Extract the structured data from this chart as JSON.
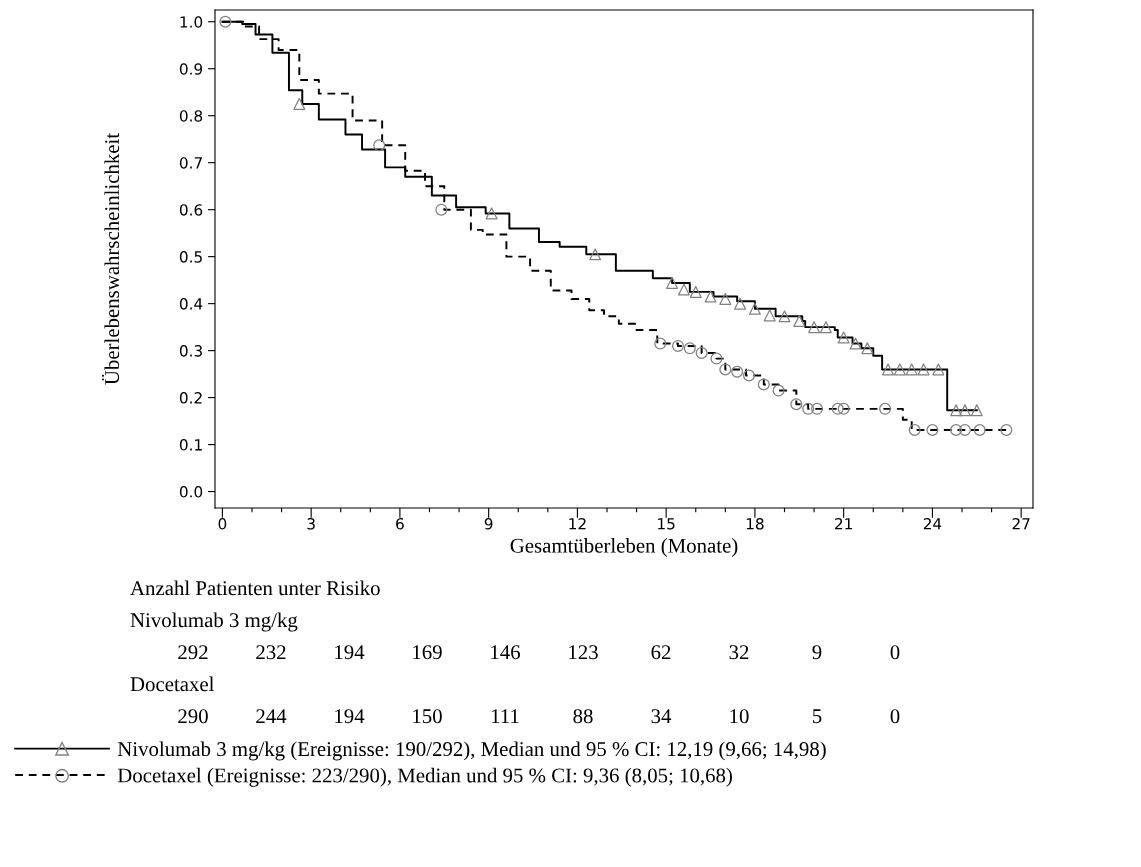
{
  "chart_data": {
    "type": "step",
    "xlabel": "Gesamtüberleben (Monate)",
    "ylabel": "Überlebenswahrscheinlichkeit",
    "xlim": [
      -0.25,
      27.4
    ],
    "ylim": [
      -0.035,
      1.025
    ],
    "xticks": [
      0,
      {
        "value": 1,
        "label": null
      },
      {
        "value": 2,
        "label": null
      },
      3,
      {
        "value": 4,
        "label": null
      },
      {
        "value": 5,
        "label": null
      },
      6,
      {
        "value": 7,
        "label": null
      },
      {
        "value": 8,
        "label": null
      },
      9,
      {
        "value": 10,
        "label": null
      },
      {
        "value": 11,
        "label": null
      },
      12,
      {
        "value": 13,
        "label": null
      },
      {
        "value": 14,
        "label": null
      },
      15,
      {
        "value": 16,
        "label": null
      },
      {
        "value": 17,
        "label": null
      },
      18,
      {
        "value": 19,
        "label": null
      },
      {
        "value": 20,
        "label": null
      },
      21,
      {
        "value": 22,
        "label": null
      },
      {
        "value": 23,
        "label": null
      },
      24,
      {
        "value": 25,
        "label": null
      },
      {
        "value": 26,
        "label": null
      },
      27
    ],
    "yticks": [
      {
        "value": 0,
        "label": "0.0"
      },
      0.1,
      0.2,
      0.3,
      0.4,
      0.5,
      0.6,
      0.7,
      0.8,
      0.9,
      {
        "value": 1,
        "label": "1.0"
      }
    ],
    "grid": false,
    "legend": "bottom",
    "series": [
      {
        "name": "Nivolumab 3 mg/kg (Ereignisse: 190/292), Median und 95 % CI: 12,19 (9,66; 14,98)",
        "color": "#000000",
        "line_style": "solid",
        "x": [
          0,
          0.67,
          1.12,
          1.69,
          2.25,
          2.7,
          3.26,
          4.16,
          4.72,
          5.5,
          6.18,
          7.08,
          7.9,
          8.9,
          9.7,
          10.7,
          11.4,
          12.3,
          13.3,
          14.55,
          15.2,
          15.8,
          16.6,
          17.4,
          18.0,
          18.7,
          19.6,
          19.7,
          20.7,
          20.8,
          21.3,
          21.6,
          22.0,
          22.3,
          24.5,
          25.5
        ],
        "values": [
          1.0,
          0.995,
          0.973,
          0.934,
          0.854,
          0.825,
          0.792,
          0.76,
          0.728,
          0.69,
          0.67,
          0.63,
          0.605,
          0.592,
          0.56,
          0.531,
          0.521,
          0.505,
          0.47,
          0.454,
          0.444,
          0.425,
          0.415,
          0.405,
          0.389,
          0.373,
          0.363,
          0.35,
          0.344,
          0.328,
          0.315,
          0.305,
          0.289,
          0.26,
          0.173,
          0.173
        ]
      },
      {
        "name": "Docetaxel (Ereignisse: 223/290), Median und 95 % CI: 9,36 (8,05; 10,68)",
        "color": "#000000",
        "line_style": "dashed",
        "x": [
          0,
          0.7,
          1.24,
          1.9,
          2.6,
          3.26,
          4.4,
          5.4,
          6.18,
          6.85,
          7.5,
          8.4,
          8.8,
          9.6,
          10.4,
          11.1,
          11.8,
          12.4,
          12.9,
          13.4,
          14.0,
          14.7,
          15.4,
          16.2,
          16.7,
          17.0,
          17.7,
          18.3,
          18.8,
          19.4,
          19.8,
          23.0,
          23.3,
          26.5
        ],
        "values": [
          1.0,
          0.99,
          0.963,
          0.94,
          0.876,
          0.847,
          0.79,
          0.737,
          0.683,
          0.65,
          0.6,
          0.557,
          0.547,
          0.5,
          0.47,
          0.428,
          0.41,
          0.386,
          0.373,
          0.357,
          0.344,
          0.315,
          0.31,
          0.295,
          0.283,
          0.26,
          0.247,
          0.228,
          0.215,
          0.186,
          0.176,
          0.153,
          0.131,
          0.131
        ]
      },
      {
        "type": "scatter",
        "marker": "triangle",
        "color": "#808080",
        "x": [
          2.6,
          9.1,
          12.6,
          15.2,
          15.6,
          16.0,
          16.5,
          17.0,
          17.5,
          18.0,
          18.5,
          19.0,
          19.5,
          20.0,
          20.4,
          21.0,
          21.4,
          21.8,
          22.5,
          22.9,
          23.3,
          23.7,
          24.2,
          24.8,
          25.1,
          25.5
        ],
        "values": [
          0.825,
          0.592,
          0.505,
          0.444,
          0.43,
          0.425,
          0.415,
          0.41,
          0.4,
          0.389,
          0.375,
          0.373,
          0.363,
          0.35,
          0.35,
          0.328,
          0.315,
          0.305,
          0.26,
          0.26,
          0.26,
          0.26,
          0.26,
          0.173,
          0.173,
          0.173
        ]
      },
      {
        "type": "scatter",
        "marker": "circle",
        "color": "#808080",
        "x": [
          0.1,
          5.3,
          7.4,
          14.8,
          15.4,
          15.8,
          16.2,
          16.7,
          17.0,
          17.4,
          17.8,
          18.3,
          18.8,
          19.4,
          19.8,
          20.1,
          20.8,
          21.0,
          22.4,
          23.4,
          24.0,
          24.8,
          25.1,
          25.6,
          26.5
        ],
        "values": [
          1.0,
          0.737,
          0.6,
          0.315,
          0.31,
          0.305,
          0.295,
          0.283,
          0.26,
          0.255,
          0.247,
          0.228,
          0.215,
          0.186,
          0.176,
          0.176,
          0.176,
          0.176,
          0.176,
          0.131,
          0.131,
          0.131,
          0.131,
          0.131,
          0.131
        ]
      }
    ],
    "annotations": [
      "Anzahl Patienten unter Risiko",
      "Nivolumab 3 mg/kg",
      "292",
      "232",
      "194",
      "169",
      "146",
      "123",
      "62",
      "32",
      "9",
      "0",
      "Docetaxel",
      "290",
      "244",
      "194",
      "150",
      "111",
      "88",
      "34",
      "10",
      "5",
      "0"
    ]
  }
}
